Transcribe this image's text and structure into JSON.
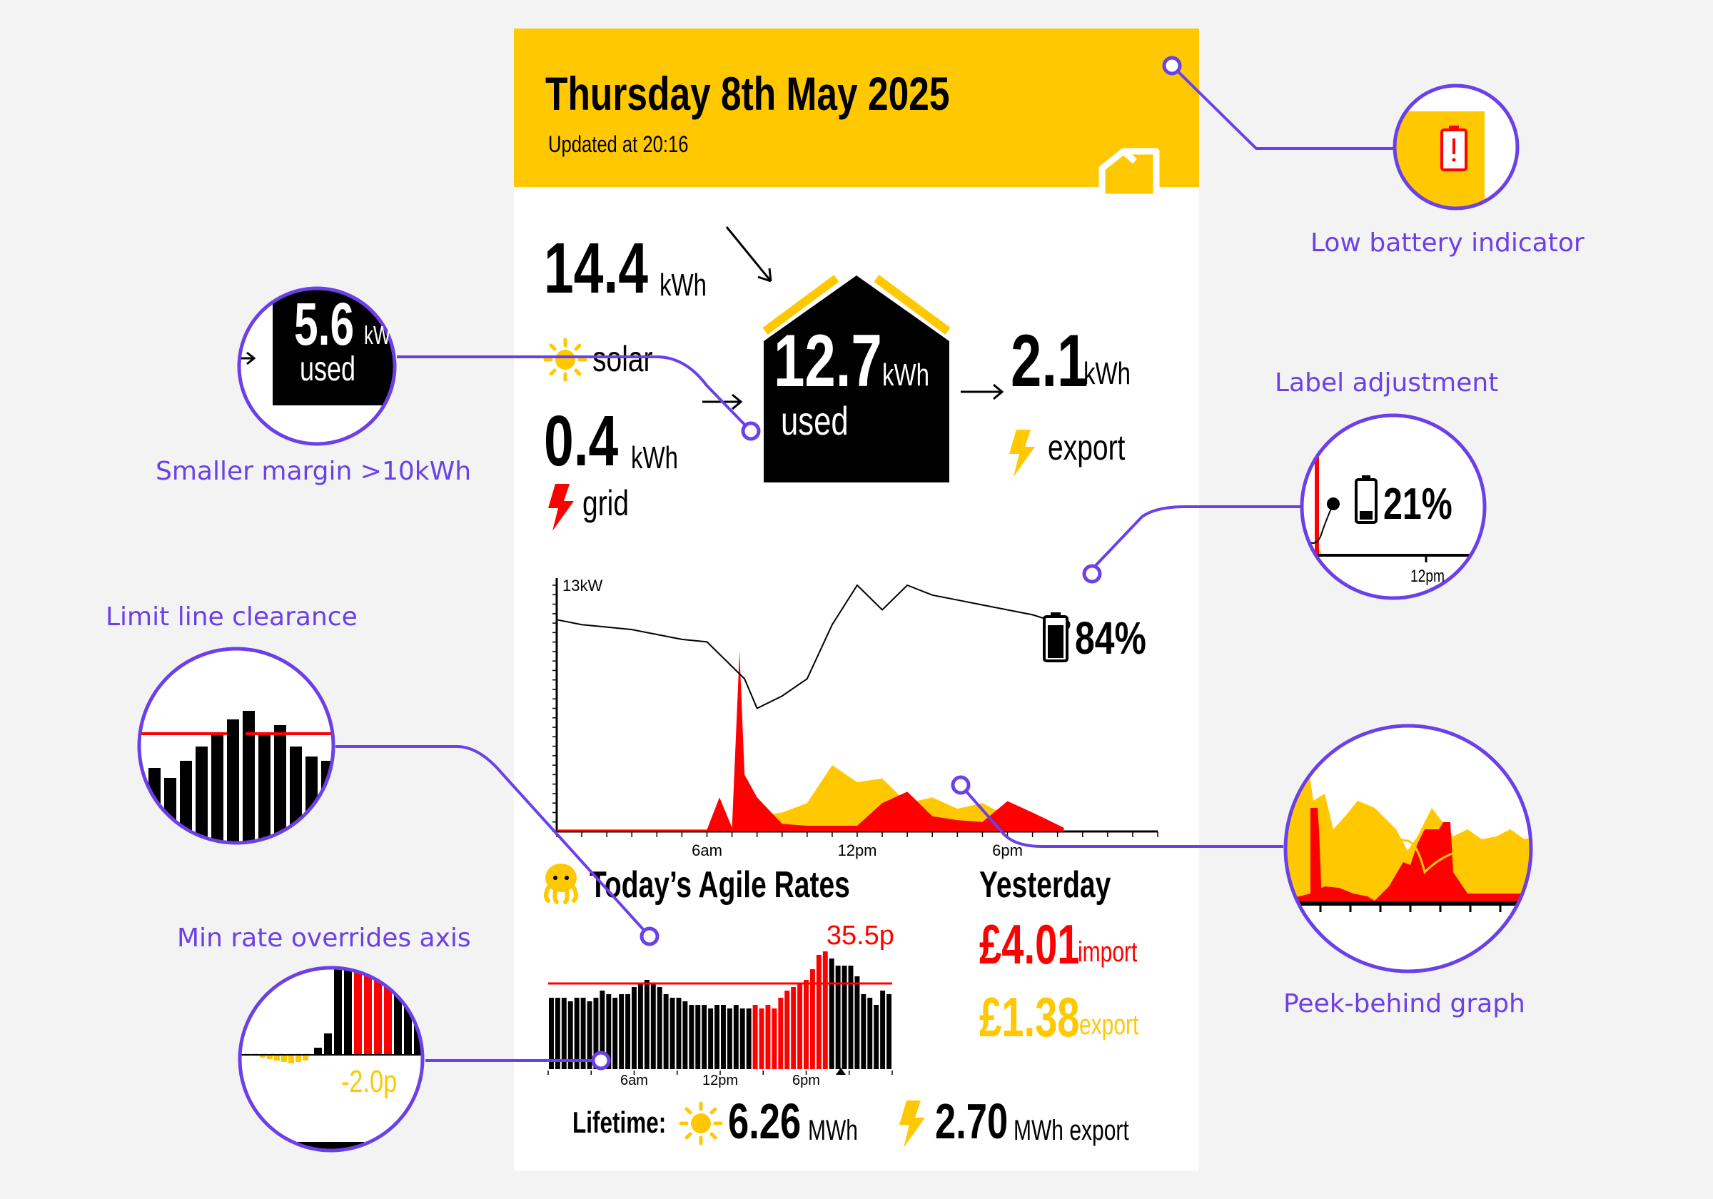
{
  "header": {
    "date": "Thursday 8th May 2025",
    "updated": "Updated at 20:16"
  },
  "energy": {
    "solar": {
      "value": "14.4",
      "unit": "kWh",
      "label": "solar"
    },
    "grid": {
      "value": "0.4",
      "unit": "kWh",
      "label": "grid"
    },
    "used": {
      "value": "12.7",
      "unit": "kWh",
      "label": "used"
    },
    "export": {
      "value": "2.1",
      "unit": "kWh",
      "label": "export"
    }
  },
  "chart": {
    "ymax_label": "13kW",
    "x_ticks": [
      "6am",
      "12pm",
      "6pm"
    ],
    "battery_label": "84%"
  },
  "chart_data": {
    "type": "area",
    "xlabel": "",
    "ylabel": "",
    "ymax_label": "13kW",
    "x_tick_labels": [
      "6am",
      "12pm",
      "6pm"
    ],
    "x": [
      0,
      1,
      2,
      3,
      4,
      5,
      6,
      6.5,
      7,
      7.3,
      7.5,
      8,
      9,
      10,
      11,
      12,
      13,
      14,
      15,
      16,
      17,
      18,
      19,
      20.25
    ],
    "series": [
      {
        "values": [
          0.1,
          0.1,
          0.1,
          0.1,
          0.1,
          0.1,
          0.1,
          1.8,
          0.2,
          9.5,
          3.0,
          1.8,
          0.4,
          0.3,
          0.3,
          0.3,
          1.5,
          2.1,
          0.8,
          0.6,
          0.5,
          1.6,
          1.0,
          0.2
        ]
      },
      {
        "values": [
          0,
          0,
          0,
          0,
          0,
          0,
          0,
          0,
          0.1,
          0.3,
          0.5,
          0.8,
          1.0,
          1.5,
          3.5,
          2.6,
          2.8,
          1.5,
          1.8,
          1.2,
          1.5,
          0.8,
          0.5,
          0
        ]
      },
      {
        "values": [
          86,
          84,
          83,
          82,
          80,
          78,
          77,
          72,
          67,
          64,
          62,
          50,
          55,
          62,
          84,
          100,
          90,
          100,
          96,
          94,
          92,
          90,
          88,
          84
        ]
      }
    ]
  },
  "rates": {
    "title": "Today’s Agile Rates",
    "peak_label": "35.5p",
    "x_ticks": [
      "6am",
      "12pm",
      "6pm"
    ],
    "chart_data": {
      "type": "bar",
      "limit_line": 24,
      "values": [
        20,
        20,
        20,
        19,
        20,
        20,
        19,
        20,
        22,
        21,
        20,
        21,
        21,
        23,
        24,
        25,
        24,
        23,
        21,
        20,
        20,
        19,
        18,
        18,
        18,
        17,
        18,
        18,
        17,
        18,
        17,
        17,
        18,
        17,
        18,
        17,
        20,
        22,
        23,
        24,
        25,
        28,
        32,
        33,
        31,
        29,
        29,
        29,
        26,
        21,
        20,
        18,
        22,
        21
      ]
    }
  },
  "yesterday": {
    "title": "Yesterday",
    "import_value": "£4.01",
    "import_label": "import",
    "export_value": "£1.38",
    "export_label": "export"
  },
  "lifetime": {
    "label": "Lifetime:",
    "solar_value": "6.26",
    "solar_unit": "MWh",
    "export_value": "2.70",
    "export_unit": "MWh export"
  },
  "callouts": {
    "low_battery": "Low battery indicator",
    "smaller_margin": "Smaller margin >10kWh",
    "smaller_margin_value": "5.6",
    "smaller_margin_unit": "kW",
    "smaller_margin_label": "used",
    "label_adjustment": "Label adjustment",
    "label_adjustment_value": "21%",
    "label_adjustment_tick": "12pm",
    "limit_line": "Limit line clearance",
    "min_rate": "Min rate overrides axis",
    "min_rate_value": "-2.0p",
    "peek_behind": "Peek-behind graph"
  },
  "colors": {
    "yellow": "#ffc800",
    "red": "#ff0000",
    "purple": "#6a40e8",
    "black": "#000000"
  }
}
